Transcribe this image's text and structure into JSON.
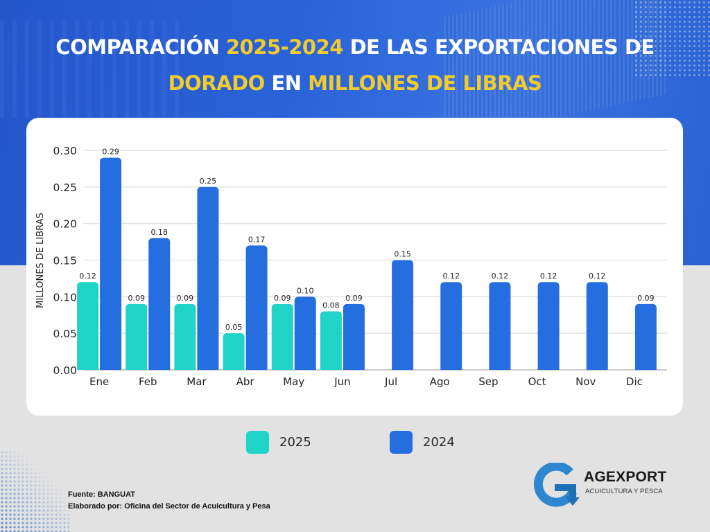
{
  "header": {
    "title_parts": [
      {
        "text": "COMPARACIÓN ",
        "highlight": false
      },
      {
        "text": "2025-2024",
        "highlight": true
      },
      {
        "text": " DE LAS EXPORTACIONES DE",
        "highlight": false
      },
      {
        "text": "DORADO",
        "highlight": true,
        "line_break_before": true
      },
      {
        "text": " EN ",
        "highlight": false
      },
      {
        "text": "MILLONES DE LIBRAS",
        "highlight": true
      }
    ]
  },
  "colors": {
    "series_2025": "#1fd3c8",
    "series_2024": "#256edf",
    "title_highlight": "#f2cb2c",
    "title_text": "#ffffff"
  },
  "chart_data": {
    "type": "bar",
    "title": "COMPARACIÓN 2025-2024 DE LAS EXPORTACIONES DE DORADO EN MILLONES DE LIBRAS",
    "xlabel": "",
    "ylabel": "MILLONES DE LIBRAS",
    "ylim": [
      0,
      0.3
    ],
    "yticks": [
      "0.00",
      "0.05",
      "0.10",
      "0.15",
      "0.20",
      "0.25",
      "0.30"
    ],
    "ytick_values": [
      0,
      0.05,
      0.1,
      0.15,
      0.2,
      0.25,
      0.3
    ],
    "grid": true,
    "legend_position": "bottom",
    "categories": [
      "Ene",
      "Feb",
      "Mar",
      "Abr",
      "May",
      "Jun",
      "Jul",
      "Ago",
      "Sep",
      "Oct",
      "Nov",
      "Dic"
    ],
    "series": [
      {
        "name": "2025",
        "color": "#1fd3c8",
        "values": [
          0.12,
          0.09,
          0.09,
          0.05,
          0.09,
          0.08,
          null,
          null,
          null,
          null,
          null,
          null
        ]
      },
      {
        "name": "2024",
        "color": "#256edf",
        "values": [
          0.29,
          0.18,
          0.25,
          0.17,
          0.1,
          0.09,
          0.15,
          0.12,
          0.12,
          0.12,
          0.12,
          0.09
        ]
      }
    ]
  },
  "legend": {
    "items": [
      {
        "label": "2025",
        "color": "#1fd3c8"
      },
      {
        "label": "2024",
        "color": "#256edf"
      }
    ]
  },
  "footer": {
    "source": "Fuente:  BANGUAT",
    "author": "Elaborado por:  Oficina del Sector de Acuicultura y Pesa"
  },
  "logo": {
    "name": "AGEXPORT",
    "subtitle": "ACUICULTURA Y PESCA",
    "icon": "agexport-g-arrow-icon"
  }
}
